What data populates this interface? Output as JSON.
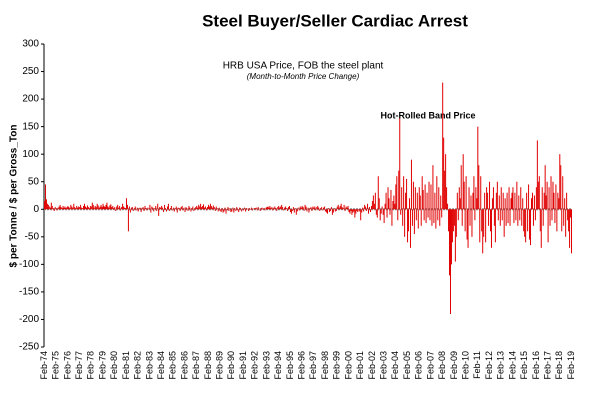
{
  "chart_data": {
    "type": "bar",
    "title": "Steel Buyer/Seller Cardiac Arrest",
    "subtitle": "HRB USA Price, FOB the steel plant",
    "subtitle2": "(Month-to-Month Price Change)",
    "annotation": "Hot-Rolled Band Price",
    "y_label": "$ per Tonne / $ per Gross_Ton",
    "color": "#e00000",
    "ylim": [
      -250,
      300
    ],
    "yticks": [
      -250,
      -200,
      -150,
      -100,
      -50,
      0,
      50,
      100,
      150,
      200,
      250,
      300
    ],
    "grid": false,
    "categories": [
      "Feb-74",
      null,
      null,
      null,
      null,
      null,
      null,
      null,
      null,
      null,
      null,
      null,
      "Feb-75",
      null,
      null,
      null,
      null,
      null,
      null,
      null,
      null,
      null,
      null,
      null,
      "Feb-76",
      null,
      null,
      null,
      null,
      null,
      null,
      null,
      null,
      null,
      null,
      null,
      "Feb-77",
      null,
      null,
      null,
      null,
      null,
      null,
      null,
      null,
      null,
      null,
      null,
      "Feb-78",
      null,
      null,
      null,
      null,
      null,
      null,
      null,
      null,
      null,
      null,
      null,
      "Feb-79",
      null,
      null,
      null,
      null,
      null,
      null,
      null,
      null,
      null,
      null,
      null,
      "Feb-80",
      null,
      null,
      null,
      null,
      null,
      null,
      null,
      null,
      null,
      null,
      null,
      "Feb-81",
      null,
      null,
      null,
      null,
      null,
      null,
      null,
      null,
      null,
      null,
      null,
      "Feb-82",
      null,
      null,
      null,
      null,
      null,
      null,
      null,
      null,
      null,
      null,
      null,
      "Feb-83",
      null,
      null,
      null,
      null,
      null,
      null,
      null,
      null,
      null,
      null,
      null,
      "Feb-84",
      null,
      null,
      null,
      null,
      null,
      null,
      null,
      null,
      null,
      null,
      null,
      "Feb-85",
      null,
      null,
      null,
      null,
      null,
      null,
      null,
      null,
      null,
      null,
      null,
      "Feb-86",
      null,
      null,
      null,
      null,
      null,
      null,
      null,
      null,
      null,
      null,
      null,
      "Feb-87",
      null,
      null,
      null,
      null,
      null,
      null,
      null,
      null,
      null,
      null,
      null,
      "Feb-88",
      null,
      null,
      null,
      null,
      null,
      null,
      null,
      null,
      null,
      null,
      null,
      "Feb-89",
      null,
      null,
      null,
      null,
      null,
      null,
      null,
      null,
      null,
      null,
      null,
      "Feb-90",
      null,
      null,
      null,
      null,
      null,
      null,
      null,
      null,
      null,
      null,
      null,
      "Feb-91",
      null,
      null,
      null,
      null,
      null,
      null,
      null,
      null,
      null,
      null,
      null,
      "Feb-92",
      null,
      null,
      null,
      null,
      null,
      null,
      null,
      null,
      null,
      null,
      null,
      "Feb-93",
      null,
      null,
      null,
      null,
      null,
      null,
      null,
      null,
      null,
      null,
      null,
      "Feb-94",
      null,
      null,
      null,
      null,
      null,
      null,
      null,
      null,
      null,
      null,
      null,
      "Feb-95",
      null,
      null,
      null,
      null,
      null,
      null,
      null,
      null,
      null,
      null,
      null,
      "Feb-96",
      null,
      null,
      null,
      null,
      null,
      null,
      null,
      null,
      null,
      null,
      null,
      "Feb-97",
      null,
      null,
      null,
      null,
      null,
      null,
      null,
      null,
      null,
      null,
      null,
      "Feb-98",
      null,
      null,
      null,
      null,
      null,
      null,
      null,
      null,
      null,
      null,
      null,
      "Feb-99",
      null,
      null,
      null,
      null,
      null,
      null,
      null,
      null,
      null,
      null,
      null,
      "Feb-00",
      null,
      null,
      null,
      null,
      null,
      null,
      null,
      null,
      null,
      null,
      null,
      "Feb-01",
      null,
      null,
      null,
      null,
      null,
      null,
      null,
      null,
      null,
      null,
      null,
      "Feb-02",
      null,
      null,
      null,
      null,
      null,
      null,
      null,
      null,
      null,
      null,
      null,
      "Feb-03",
      null,
      null,
      null,
      null,
      null,
      null,
      null,
      null,
      null,
      null,
      null,
      "Feb-04",
      null,
      null,
      null,
      null,
      null,
      null,
      null,
      null,
      null,
      null,
      null,
      "Feb-05",
      null,
      null,
      null,
      null,
      null,
      null,
      null,
      null,
      null,
      null,
      null,
      "Feb-06",
      null,
      null,
      null,
      null,
      null,
      null,
      null,
      null,
      null,
      null,
      null,
      "Feb-07",
      null,
      null,
      null,
      null,
      null,
      null,
      null,
      null,
      null,
      null,
      null,
      "Feb-08",
      null,
      null,
      null,
      null,
      null,
      null,
      null,
      null,
      null,
      null,
      null,
      "Feb-09",
      null,
      null,
      null,
      null,
      null,
      null,
      null,
      null,
      null,
      null,
      null,
      "Feb-10",
      null,
      null,
      null,
      null,
      null,
      null,
      null,
      null,
      null,
      null,
      null,
      "Feb-11",
      null,
      null,
      null,
      null,
      null,
      null,
      null,
      null,
      null,
      null,
      null,
      "Feb-12",
      null,
      null,
      null,
      null,
      null,
      null,
      null,
      null,
      null,
      null,
      null,
      "Feb-13",
      null,
      null,
      null,
      null,
      null,
      null,
      null,
      null,
      null,
      null,
      null,
      "Feb-14",
      null,
      null,
      null,
      null,
      null,
      null,
      null,
      null,
      null,
      null,
      null,
      "Feb-15",
      null,
      null,
      null,
      null,
      null,
      null,
      null,
      null,
      null,
      null,
      null,
      "Feb-16",
      null,
      null,
      null,
      null,
      null,
      null,
      null,
      null,
      null,
      null,
      null,
      "Feb-17",
      null,
      null,
      null,
      null,
      null,
      null,
      null,
      null,
      null,
      null,
      null,
      "Feb-18",
      null,
      null,
      null,
      null,
      null,
      null,
      null,
      null,
      null,
      null,
      null,
      "Feb-19"
    ],
    "values": [
      15,
      45,
      18,
      10,
      8,
      5,
      3,
      12,
      6,
      2,
      -3,
      4,
      2,
      -2,
      3,
      5,
      8,
      4,
      2,
      6,
      3,
      5,
      2,
      4,
      6,
      4,
      2,
      8,
      5,
      3,
      10,
      4,
      2,
      6,
      3,
      5,
      4,
      8,
      3,
      2,
      6,
      10,
      5,
      3,
      7,
      4,
      2,
      6,
      5,
      12,
      8,
      3,
      6,
      4,
      10,
      7,
      3,
      5,
      8,
      4,
      10,
      6,
      4,
      8,
      12,
      5,
      3,
      7,
      9,
      4,
      6,
      2,
      4,
      -3,
      5,
      8,
      3,
      6,
      -2,
      4,
      10,
      5,
      3,
      2,
      20,
      8,
      -40,
      5,
      -6,
      3,
      4,
      -3,
      2,
      5,
      -2,
      3,
      -4,
      2,
      3,
      -5,
      2,
      4,
      -3,
      6,
      2,
      -2,
      3,
      1,
      8,
      -6,
      5,
      3,
      -4,
      2,
      6,
      -3,
      10,
      -12,
      4,
      3,
      6,
      3,
      -5,
      8,
      2,
      -4,
      5,
      10,
      -3,
      2,
      6,
      -2,
      3,
      -4,
      2,
      5,
      -6,
      3,
      2,
      -3,
      4,
      6,
      -2,
      3,
      -5,
      4,
      2,
      -3,
      6,
      3,
      -4,
      2,
      5,
      -3,
      2,
      4,
      6,
      3,
      8,
      5,
      10,
      4,
      6,
      9,
      3,
      5,
      -2,
      4,
      8,
      5,
      10,
      6,
      3,
      7,
      4,
      -3,
      5,
      2,
      -4,
      3,
      -3,
      -5,
      2,
      -6,
      -4,
      3,
      -8,
      -2,
      4,
      -3,
      2,
      -5,
      -4,
      3,
      -6,
      2,
      -3,
      4,
      -2,
      -5,
      3,
      2,
      -4,
      1,
      -2,
      3,
      -4,
      2,
      1,
      -3,
      2,
      -1,
      3,
      -2,
      1,
      2,
      2,
      3,
      -2,
      4,
      1,
      -3,
      2,
      3,
      -1,
      2,
      -2,
      3,
      4,
      5,
      3,
      6,
      2,
      4,
      -2,
      3,
      5,
      2,
      -3,
      4,
      6,
      3,
      5,
      8,
      4,
      -2,
      3,
      5,
      2,
      -3,
      4,
      6,
      -5,
      -8,
      -3,
      4,
      -6,
      2,
      -10,
      -4,
      3,
      -2,
      5,
      3,
      6,
      4,
      -3,
      8,
      5,
      -4,
      3,
      -6,
      2,
      4,
      -3,
      5,
      3,
      5,
      -2,
      4,
      6,
      3,
      -3,
      2,
      4,
      -2,
      3,
      5,
      -4,
      -6,
      -8,
      2,
      -5,
      -3,
      4,
      -10,
      -6,
      2,
      -4,
      -3,
      5,
      8,
      3,
      6,
      10,
      4,
      2,
      8,
      -3,
      5,
      3,
      6,
      -5,
      -8,
      -3,
      -10,
      -6,
      -4,
      -15,
      -8,
      -3,
      -5,
      -2,
      -4,
      -20,
      -6,
      3,
      -4,
      8,
      5,
      -3,
      10,
      -8,
      4,
      -5,
      6,
      15,
      25,
      10,
      30,
      -10,
      -15,
      60,
      20,
      -20,
      -8,
      5,
      -10,
      -25,
      10,
      30,
      -15,
      40,
      20,
      -10,
      35,
      -30,
      15,
      25,
      10,
      45,
      60,
      -20,
      70,
      165,
      -10,
      40,
      -30,
      60,
      -50,
      30,
      55,
      -60,
      -40,
      20,
      -70,
      90,
      -30,
      50,
      -45,
      40,
      -20,
      30,
      -35,
      40,
      25,
      -30,
      60,
      35,
      -20,
      45,
      -25,
      30,
      -15,
      50,
      -20,
      45,
      -30,
      80,
      -25,
      30,
      -35,
      60,
      -20,
      40,
      -30,
      25,
      -15,
      230,
      130,
      70,
      100,
      40,
      10,
      -40,
      -120,
      -190,
      -100,
      -60,
      -40,
      -30,
      -95,
      -50,
      30,
      -20,
      40,
      20,
      80,
      -30,
      100,
      50,
      -40,
      60,
      -55,
      -70,
      40,
      -30,
      25,
      -50,
      30,
      60,
      -20,
      40,
      20,
      150,
      80,
      -60,
      60,
      -40,
      -80,
      -50,
      30,
      -60,
      40,
      30,
      -30,
      50,
      -40,
      -70,
      20,
      40,
      -30,
      -60,
      30,
      50,
      -20,
      25,
      -30,
      40,
      -20,
      30,
      -50,
      20,
      -30,
      30,
      -25,
      40,
      -30,
      20,
      30,
      40,
      -25,
      30,
      -20,
      50,
      -30,
      25,
      -20,
      40,
      -30,
      20,
      -40,
      -50,
      -60,
      30,
      -40,
      45,
      -55,
      -65,
      20,
      30,
      -30,
      25,
      -20,
      40,
      125,
      50,
      60,
      -40,
      -70,
      40,
      -30,
      30,
      80,
      25,
      50,
      -60,
      40,
      -30,
      60,
      -20,
      50,
      30,
      -25,
      45,
      -40,
      30,
      20,
      100,
      80,
      -40,
      60,
      -30,
      20,
      -50,
      30,
      -20,
      -40,
      -70,
      -15,
      -80
    ]
  }
}
